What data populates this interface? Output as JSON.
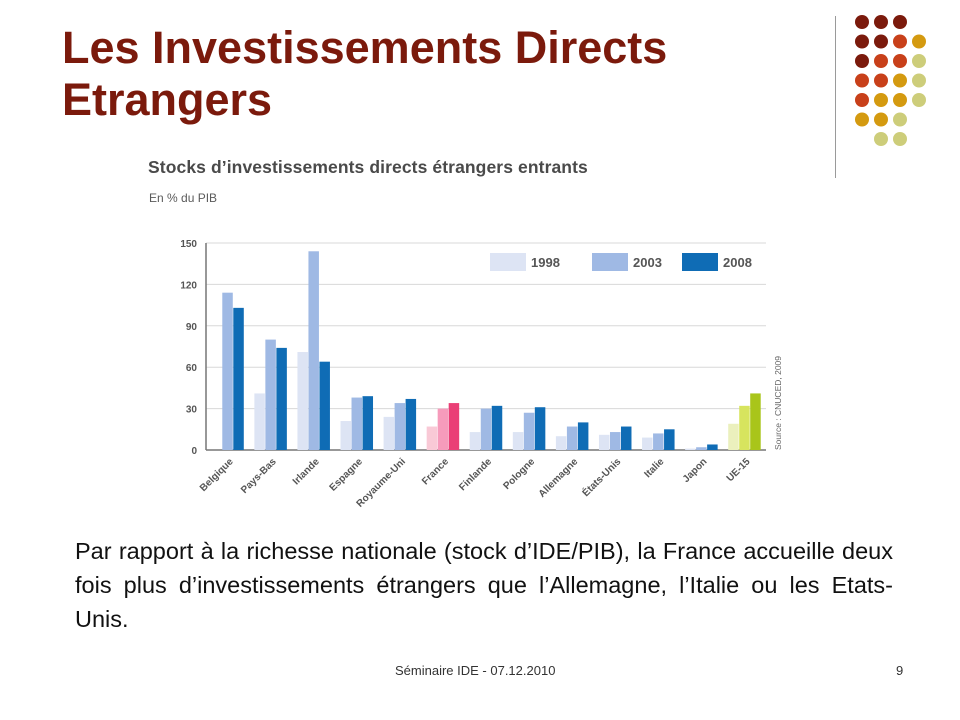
{
  "slide": {
    "title": "Les Investissements Directs Etrangers",
    "caption": "Par rapport à la richesse nationale (stock d’IDE/PIB), la France accueille deux fois plus d’investissements étrangers que l’Allemagne, l’Italie ou les Etats-Unis.",
    "footer": "Séminaire IDE - 07.12.2010",
    "page_number": "9",
    "title_color": "#7b1a0c",
    "decoration_colors": [
      "#7b1a0c",
      "#c8401a",
      "#d49a10",
      "#cdcd7a"
    ]
  },
  "chart_data": {
    "type": "bar",
    "title": "Stocks d’investissements directs étrangers entrants",
    "subtitle": "En % du PIB",
    "xlabel": "",
    "ylabel": "",
    "ylim": [
      0,
      150
    ],
    "yticks": [
      0,
      30,
      60,
      90,
      120,
      150
    ],
    "grid": true,
    "legend_position": "top-right",
    "source": "Source : CNUCED, 2009",
    "categories": [
      "Belgique",
      "Pays-Bas",
      "Irlande",
      "Espagne",
      "Royaume-Uni",
      "France",
      "Finlande",
      "Pologne",
      "Allemagne",
      "États-Unis",
      "Italie",
      "Japon",
      "UE-15"
    ],
    "series": [
      {
        "name": "1998",
        "values": [
          0,
          41,
          71,
          21,
          24,
          17,
          13,
          13,
          10,
          11,
          9,
          1,
          19
        ],
        "color": "#dde4f4"
      },
      {
        "name": "2003",
        "values": [
          114,
          80,
          144,
          38,
          34,
          30,
          30,
          27,
          17,
          13,
          12,
          2,
          32
        ],
        "color": "#9fb9e4"
      },
      {
        "name": "2008",
        "values": [
          103,
          74,
          64,
          39,
          37,
          34,
          32,
          31,
          20,
          17,
          15,
          4,
          41
        ],
        "color": "#0f6cb5"
      }
    ],
    "highlight_colors": {
      "France": [
        "#f9c9d6",
        "#f69bbb",
        "#ea3f76"
      ],
      "UE-15": [
        "#ebf0bd",
        "#d7e45e",
        "#a9c51a"
      ]
    }
  }
}
